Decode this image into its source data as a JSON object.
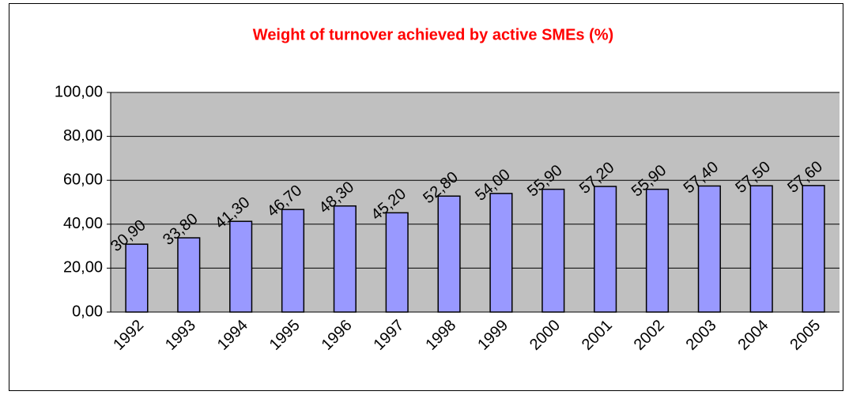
{
  "chart_data": {
    "type": "bar",
    "title": "Weight of turnover achieved by active  SMEs (%)",
    "categories": [
      "1992",
      "1993",
      "1994",
      "1995",
      "1996",
      "1997",
      "1998",
      "1999",
      "2000",
      "2001",
      "2002",
      "2003",
      "2004",
      "2005"
    ],
    "values": [
      30.9,
      33.8,
      41.3,
      46.7,
      48.3,
      45.2,
      52.8,
      54.0,
      55.9,
      57.2,
      55.9,
      57.4,
      57.5,
      57.6
    ],
    "value_labels": [
      "30,90",
      "33,80",
      "41,30",
      "46,70",
      "48,30",
      "45,20",
      "52,80",
      "54,00",
      "55,90",
      "57,20",
      "55,90",
      "57,40",
      "57,50",
      "57,60"
    ],
    "color": "#9999ff",
    "ylim": [
      0,
      100
    ],
    "yticks": [
      {
        "value": 0,
        "label": "0,00"
      },
      {
        "value": 20,
        "label": "20,00"
      },
      {
        "value": 40,
        "label": "40,00"
      },
      {
        "value": 60,
        "label": "60,00"
      },
      {
        "value": 80,
        "label": "80,00"
      },
      {
        "value": 100,
        "label": "100,00"
      }
    ],
    "grid": true
  }
}
